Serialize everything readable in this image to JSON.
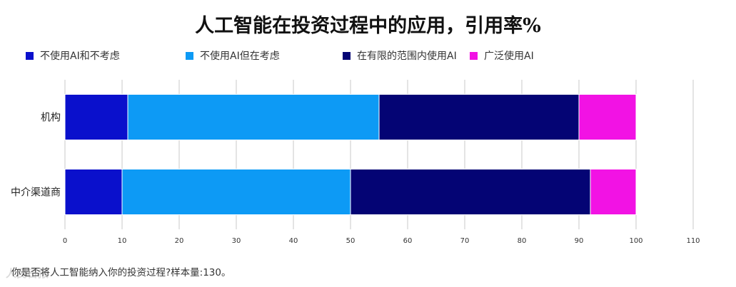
{
  "chart_data": {
    "type": "bar",
    "orientation": "horizontal",
    "stacked": true,
    "title": "人工智能在投资过程中的应用，引用率%",
    "categories": [
      "机构",
      "中介渠道商"
    ],
    "series": [
      {
        "name": "不使用AI和不考虑",
        "color": "#0a10cc",
        "values": [
          11,
          10
        ]
      },
      {
        "name": "不使用AI但在考虑",
        "color": "#0d9af5",
        "values": [
          44,
          40
        ]
      },
      {
        "name": "在有限的范围内使用AI",
        "color": "#040474",
        "values": [
          35,
          42
        ]
      },
      {
        "name": "广泛使用AI",
        "color": "#f212e4",
        "values": [
          10,
          8
        ]
      }
    ],
    "xlim": [
      0,
      110
    ],
    "xticks": [
      "0",
      "10",
      "20",
      "30",
      "40",
      "50",
      "60",
      "70",
      "80",
      "90",
      "100",
      "110"
    ],
    "grid": true,
    "legend_position": "top"
  },
  "footnote": "你是否将人工智能纳入你的投资过程?样本量:130。",
  "watermark": "人民日报"
}
